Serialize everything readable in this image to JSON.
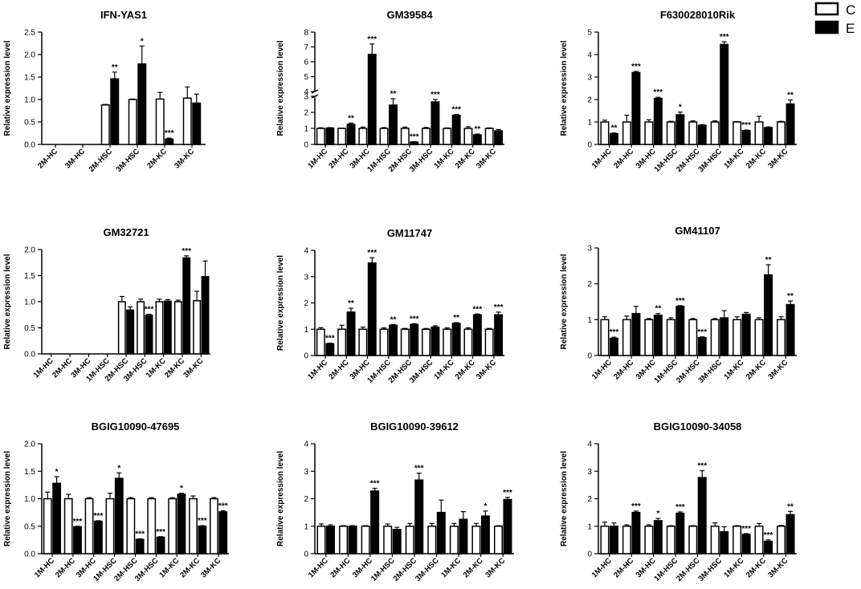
{
  "colors": {
    "control": "#ffffff",
    "exposed": "#000000",
    "axis": "#000000"
  },
  "legend": [
    {
      "label": "C",
      "color": "#ffffff"
    },
    {
      "label": "E",
      "color": "#000000"
    }
  ],
  "chart_data": [
    {
      "type": "bar",
      "title": "IFN-YAS1",
      "ylabel": "Relative expression level",
      "ylim": [
        0,
        2.5
      ],
      "yticks": [
        "0.0",
        "0.5",
        "1.0",
        "1.5",
        "2.0",
        "2.5"
      ],
      "categories": [
        "2M-HC",
        "3M-HC",
        "2M-HSC",
        "3M-HSC",
        "2M-KC",
        "3M-KC"
      ],
      "series": [
        {
          "name": "C",
          "values": [
            null,
            null,
            0.88,
            1.0,
            1.01,
            1.03
          ],
          "errors": [
            null,
            null,
            0.01,
            0.01,
            0.15,
            0.25
          ]
        },
        {
          "name": "E",
          "values": [
            null,
            null,
            1.46,
            1.79,
            0.12,
            0.92
          ],
          "errors": [
            null,
            null,
            0.15,
            0.4,
            0.02,
            0.2
          ]
        }
      ],
      "significance": [
        "",
        "",
        "**",
        "*",
        "***",
        ""
      ]
    },
    {
      "type": "bar",
      "title": "GM39584",
      "ylabel": "Relative expression level",
      "ylim": [
        0,
        8
      ],
      "axis_break": [
        3,
        4
      ],
      "yticks": [
        "0",
        "1",
        "2",
        "3",
        "4",
        "5",
        "6",
        "7",
        "8"
      ],
      "categories": [
        "1M-HC",
        "2M-HC",
        "3M-HC",
        "1M-HSC",
        "2M-HSC",
        "3M-HSC",
        "1M-KC",
        "2M-KC",
        "3M-KC"
      ],
      "series": [
        {
          "name": "C",
          "values": [
            1.0,
            1.0,
            1.0,
            1.0,
            1.0,
            1.0,
            1.0,
            1.0,
            1.0
          ],
          "errors": [
            0.04,
            0.02,
            0.08,
            0.05,
            0.08,
            0.06,
            0.03,
            0.1,
            0.03
          ]
        },
        {
          "name": "E",
          "values": [
            1.02,
            1.25,
            6.5,
            2.45,
            0.15,
            2.65,
            1.82,
            0.6,
            0.85
          ],
          "errors": [
            0.03,
            0.08,
            0.7,
            0.4,
            0.02,
            0.15,
            0.05,
            0.05,
            0.08
          ]
        }
      ],
      "significance": [
        "",
        "**",
        "***",
        "**",
        "***",
        "***",
        "***",
        "**",
        ""
      ]
    },
    {
      "type": "bar",
      "title": "F630028010Rik",
      "ylabel": "Relative expression level",
      "ylim": [
        0,
        5
      ],
      "yticks": [
        "0",
        "1",
        "2",
        "3",
        "4",
        "5"
      ],
      "categories": [
        "1M-HC",
        "2M-HC",
        "3M-HC",
        "1M-HSC",
        "2M-HSC",
        "3M-HSC",
        "1M-KC",
        "2M-KC",
        "3M-KC"
      ],
      "series": [
        {
          "name": "C",
          "values": [
            1.0,
            1.0,
            1.0,
            1.0,
            1.0,
            1.0,
            1.0,
            1.0,
            1.0
          ],
          "errors": [
            0.08,
            0.3,
            0.1,
            0.03,
            0.05,
            0.05,
            0.02,
            0.25,
            0.03
          ]
        },
        {
          "name": "E",
          "values": [
            0.48,
            3.2,
            2.05,
            1.32,
            0.85,
            4.45,
            0.62,
            0.75,
            1.8
          ],
          "errors": [
            0.03,
            0.05,
            0.05,
            0.12,
            0.03,
            0.12,
            0.02,
            0.03,
            0.18
          ]
        }
      ],
      "significance": [
        "**",
        "***",
        "***",
        "*",
        "",
        "***",
        "***",
        "",
        "**"
      ]
    },
    {
      "type": "bar",
      "title": "GM32721",
      "ylabel": "Relative expression level",
      "ylim": [
        0,
        2.0
      ],
      "yticks": [
        "0.0",
        "0.5",
        "1.0",
        "1.5",
        "2.0"
      ],
      "categories": [
        "1M-HC",
        "2M-HC",
        "3M-HC",
        "1M-HSC",
        "2M-HSC",
        "3M-HSC",
        "1M-KC",
        "2M-KC",
        "3M-KC"
      ],
      "series": [
        {
          "name": "C",
          "values": [
            null,
            null,
            null,
            null,
            1.0,
            1.0,
            1.0,
            1.0,
            1.02
          ],
          "errors": [
            null,
            null,
            null,
            null,
            0.1,
            0.05,
            0.05,
            0.03,
            0.18
          ]
        },
        {
          "name": "E",
          "values": [
            null,
            null,
            null,
            null,
            0.84,
            0.74,
            1.01,
            1.84,
            1.48
          ],
          "errors": [
            null,
            null,
            null,
            null,
            0.06,
            0.02,
            0.03,
            0.04,
            0.3
          ]
        }
      ],
      "significance": [
        "",
        "",
        "",
        "",
        "",
        "***",
        "",
        "***",
        ""
      ]
    },
    {
      "type": "bar",
      "title": "GM11747",
      "ylabel": "Relative expression level",
      "ylim": [
        0,
        4
      ],
      "yticks": [
        "0",
        "1",
        "2",
        "3",
        "4"
      ],
      "categories": [
        "1M-HC",
        "2M-HC",
        "3M-HC",
        "1M-HSC",
        "2M-HSC",
        "3M-HSC",
        "1M-KC",
        "2M-KC",
        "3M-KC"
      ],
      "series": [
        {
          "name": "C",
          "values": [
            1.0,
            1.0,
            1.0,
            1.0,
            1.0,
            1.0,
            1.0,
            1.0,
            1.0
          ],
          "errors": [
            0.06,
            0.15,
            0.08,
            0.05,
            0.03,
            0.03,
            0.05,
            0.05,
            0.03
          ]
        },
        {
          "name": "E",
          "values": [
            0.45,
            1.65,
            3.52,
            1.15,
            1.18,
            1.08,
            1.22,
            1.55,
            1.55
          ],
          "errors": [
            0.02,
            0.15,
            0.2,
            0.03,
            0.03,
            0.05,
            0.03,
            0.03,
            0.1
          ]
        }
      ],
      "significance": [
        "***",
        "**",
        "***",
        "**",
        "***",
        "",
        "**",
        "***",
        "***"
      ]
    },
    {
      "type": "bar",
      "title": "GM41107",
      "ylabel": "Relative expression level",
      "ylim": [
        0,
        3
      ],
      "yticks": [
        "0",
        "1",
        "2",
        "3"
      ],
      "categories": [
        "1M-HC",
        "2M-HC",
        "3M-HC",
        "1M-HSC",
        "2M-HSC",
        "3M-HSC",
        "1M-KC",
        "2M-KC",
        "3M-KC"
      ],
      "series": [
        {
          "name": "C",
          "values": [
            1.0,
            1.0,
            1.0,
            1.0,
            1.0,
            1.0,
            1.0,
            1.0,
            1.0
          ],
          "errors": [
            0.08,
            0.1,
            0.03,
            0.05,
            0.03,
            0.03,
            0.08,
            0.05,
            0.08
          ]
        },
        {
          "name": "E",
          "values": [
            0.48,
            1.17,
            1.12,
            1.37,
            0.5,
            1.05,
            1.15,
            2.25,
            1.42
          ],
          "errors": [
            0.03,
            0.2,
            0.05,
            0.02,
            0.02,
            0.2,
            0.05,
            0.28,
            0.1
          ]
        }
      ],
      "significance": [
        "***",
        "",
        "**",
        "***",
        "***",
        "",
        "",
        "**",
        "**"
      ]
    },
    {
      "type": "bar",
      "title": "BGIG10090-47695",
      "ylabel": "Relative expression level",
      "ylim": [
        0,
        2.0
      ],
      "yticks": [
        "0.0",
        "0.5",
        "1.0",
        "1.5",
        "2.0"
      ],
      "categories": [
        "1M-HC",
        "2M-HC",
        "3M-HC",
        "1M-HSC",
        "2M-HSC",
        "3M-HSC",
        "1M-KC",
        "2M-KC",
        "3M-KC"
      ],
      "series": [
        {
          "name": "C",
          "values": [
            1.0,
            1.0,
            1.0,
            1.0,
            1.0,
            1.0,
            1.0,
            1.0,
            1.0
          ],
          "errors": [
            0.12,
            0.08,
            0.02,
            0.1,
            0.02,
            0.02,
            0.02,
            0.05,
            0.02
          ]
        },
        {
          "name": "E",
          "values": [
            1.28,
            0.49,
            0.59,
            1.37,
            0.26,
            0.3,
            1.08,
            0.5,
            0.76
          ],
          "errors": [
            0.12,
            0.01,
            0.01,
            0.1,
            0.01,
            0.01,
            0.02,
            0.01,
            0.02
          ]
        }
      ],
      "significance": [
        "*",
        "***",
        "***",
        "*",
        "***",
        "***",
        "*",
        "***",
        "***"
      ]
    },
    {
      "type": "bar",
      "title": "BGIG10090-39612",
      "ylabel": "Relative expression level",
      "ylim": [
        0,
        4
      ],
      "yticks": [
        "0",
        "1",
        "2",
        "3",
        "4"
      ],
      "categories": [
        "1M-HC",
        "2M-HC",
        "3M-HC",
        "1M-HSC",
        "2M-HSC",
        "3M-HSC",
        "1M-KC",
        "2M-KC",
        "3M-KC"
      ],
      "series": [
        {
          "name": "C",
          "values": [
            1.0,
            1.0,
            1.0,
            1.0,
            1.0,
            1.0,
            1.0,
            1.0,
            1.0
          ],
          "errors": [
            0.08,
            0.02,
            0.02,
            0.08,
            0.1,
            0.1,
            0.1,
            0.1,
            0.02
          ]
        },
        {
          "name": "E",
          "values": [
            1.0,
            1.0,
            2.28,
            0.88,
            2.68,
            1.5,
            1.25,
            1.37,
            1.97
          ],
          "errors": [
            0.05,
            0.02,
            0.1,
            0.08,
            0.25,
            0.45,
            0.28,
            0.18,
            0.08
          ]
        }
      ],
      "significance": [
        "",
        "",
        "***",
        "",
        "***",
        "",
        "",
        "*",
        "***"
      ]
    },
    {
      "type": "bar",
      "title": "BGIG10090-34058",
      "ylabel": "Relative expression level",
      "ylim": [
        0,
        4
      ],
      "yticks": [
        "0",
        "1",
        "2",
        "3",
        "4"
      ],
      "categories": [
        "1M-HC",
        "2M-HC",
        "3M-HC",
        "1M-HSC",
        "2M-HSC",
        "3M-HSC",
        "1M-KC",
        "2M-KC",
        "3M-KC"
      ],
      "series": [
        {
          "name": "C",
          "values": [
            1.0,
            1.0,
            1.0,
            1.0,
            1.0,
            1.0,
            1.0,
            1.0,
            1.0
          ],
          "errors": [
            0.15,
            0.05,
            0.05,
            0.02,
            0.02,
            0.12,
            0.02,
            0.1,
            0.03
          ]
        },
        {
          "name": "E",
          "values": [
            1.0,
            1.5,
            1.2,
            1.47,
            2.77,
            0.8,
            0.7,
            0.45,
            1.42
          ],
          "errors": [
            0.12,
            0.05,
            0.08,
            0.05,
            0.25,
            0.18,
            0.03,
            0.05,
            0.12
          ]
        }
      ],
      "significance": [
        "",
        "***",
        "*",
        "***",
        "***",
        "",
        "***",
        "***",
        "**"
      ]
    }
  ]
}
